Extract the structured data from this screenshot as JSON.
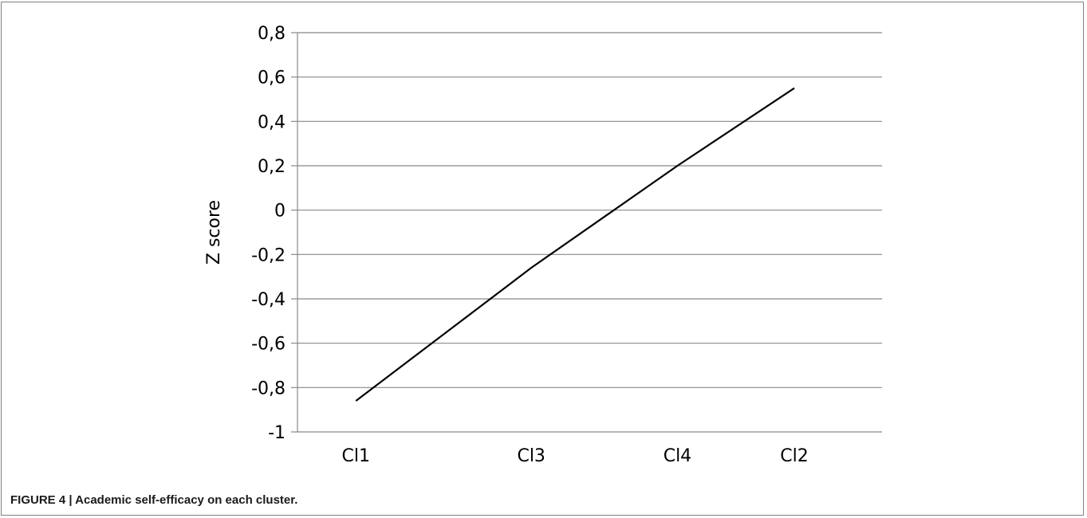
{
  "caption": {
    "label": "FIGURE 4 | Academic self-efficacy on each cluster."
  },
  "chart_data": {
    "type": "line",
    "categories": [
      "Cl1",
      "Cl3",
      "Cl4",
      "Cl2"
    ],
    "x": [
      1,
      2.2,
      3.2,
      4.0
    ],
    "series": [
      {
        "values": [
          -0.86,
          -0.26,
          0.2,
          0.55
        ]
      }
    ],
    "ylabel": "Z score",
    "xlabel": "",
    "ylim": [
      -1,
      0.8
    ],
    "yticks": [
      0.8,
      0.6,
      0.4,
      0.2,
      0,
      -0.2,
      -0.4,
      -0.6,
      -0.8,
      -1
    ],
    "ytick_labels": [
      "0,8",
      "0,6",
      "0,4",
      "0,2",
      "0",
      "-0,2",
      "-0,4",
      "-0,6",
      "-0,8",
      "-1"
    ],
    "grid": "horizontal",
    "line_color": "#000000",
    "grid_color": "#888888"
  }
}
